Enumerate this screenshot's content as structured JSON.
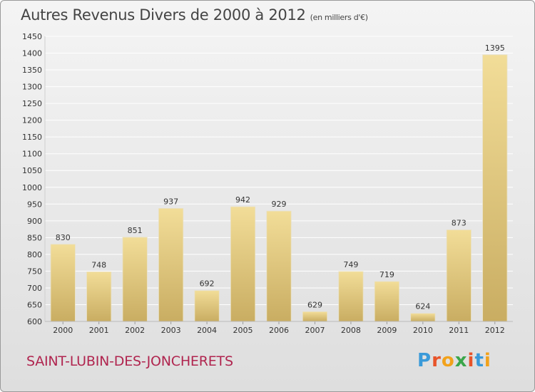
{
  "title": "Autres Revenus Divers de 2000 à 2012",
  "unit": "(en milliers d'€)",
  "commune": "SAINT-LUBIN-DES-JONCHERETS",
  "brand": {
    "letters": [
      "P",
      "r",
      "o",
      "x",
      "i",
      "t",
      "i"
    ],
    "colors": [
      "#3a9ad9",
      "#e8542a",
      "#f2a21b",
      "#3aa64a",
      "#e8542a",
      "#3a9ad9",
      "#f2a21b"
    ]
  },
  "colors": {
    "bar_top": "#f2dd98",
    "bar_bottom": "#c9ad62",
    "grid": "#ffffff",
    "axis_text": "#333333"
  },
  "chart_data": {
    "type": "bar",
    "categories": [
      "2000",
      "2001",
      "2002",
      "2003",
      "2004",
      "2005",
      "2006",
      "2007",
      "2008",
      "2009",
      "2010",
      "2011",
      "2012"
    ],
    "values": [
      830,
      748,
      851,
      937,
      692,
      942,
      929,
      629,
      749,
      719,
      624,
      873,
      1395
    ],
    "ylim": [
      600,
      1450
    ],
    "yticks": [
      600,
      650,
      700,
      750,
      800,
      850,
      900,
      950,
      1000,
      1050,
      1100,
      1150,
      1200,
      1250,
      1300,
      1350,
      1400,
      1450
    ],
    "grid": true
  }
}
